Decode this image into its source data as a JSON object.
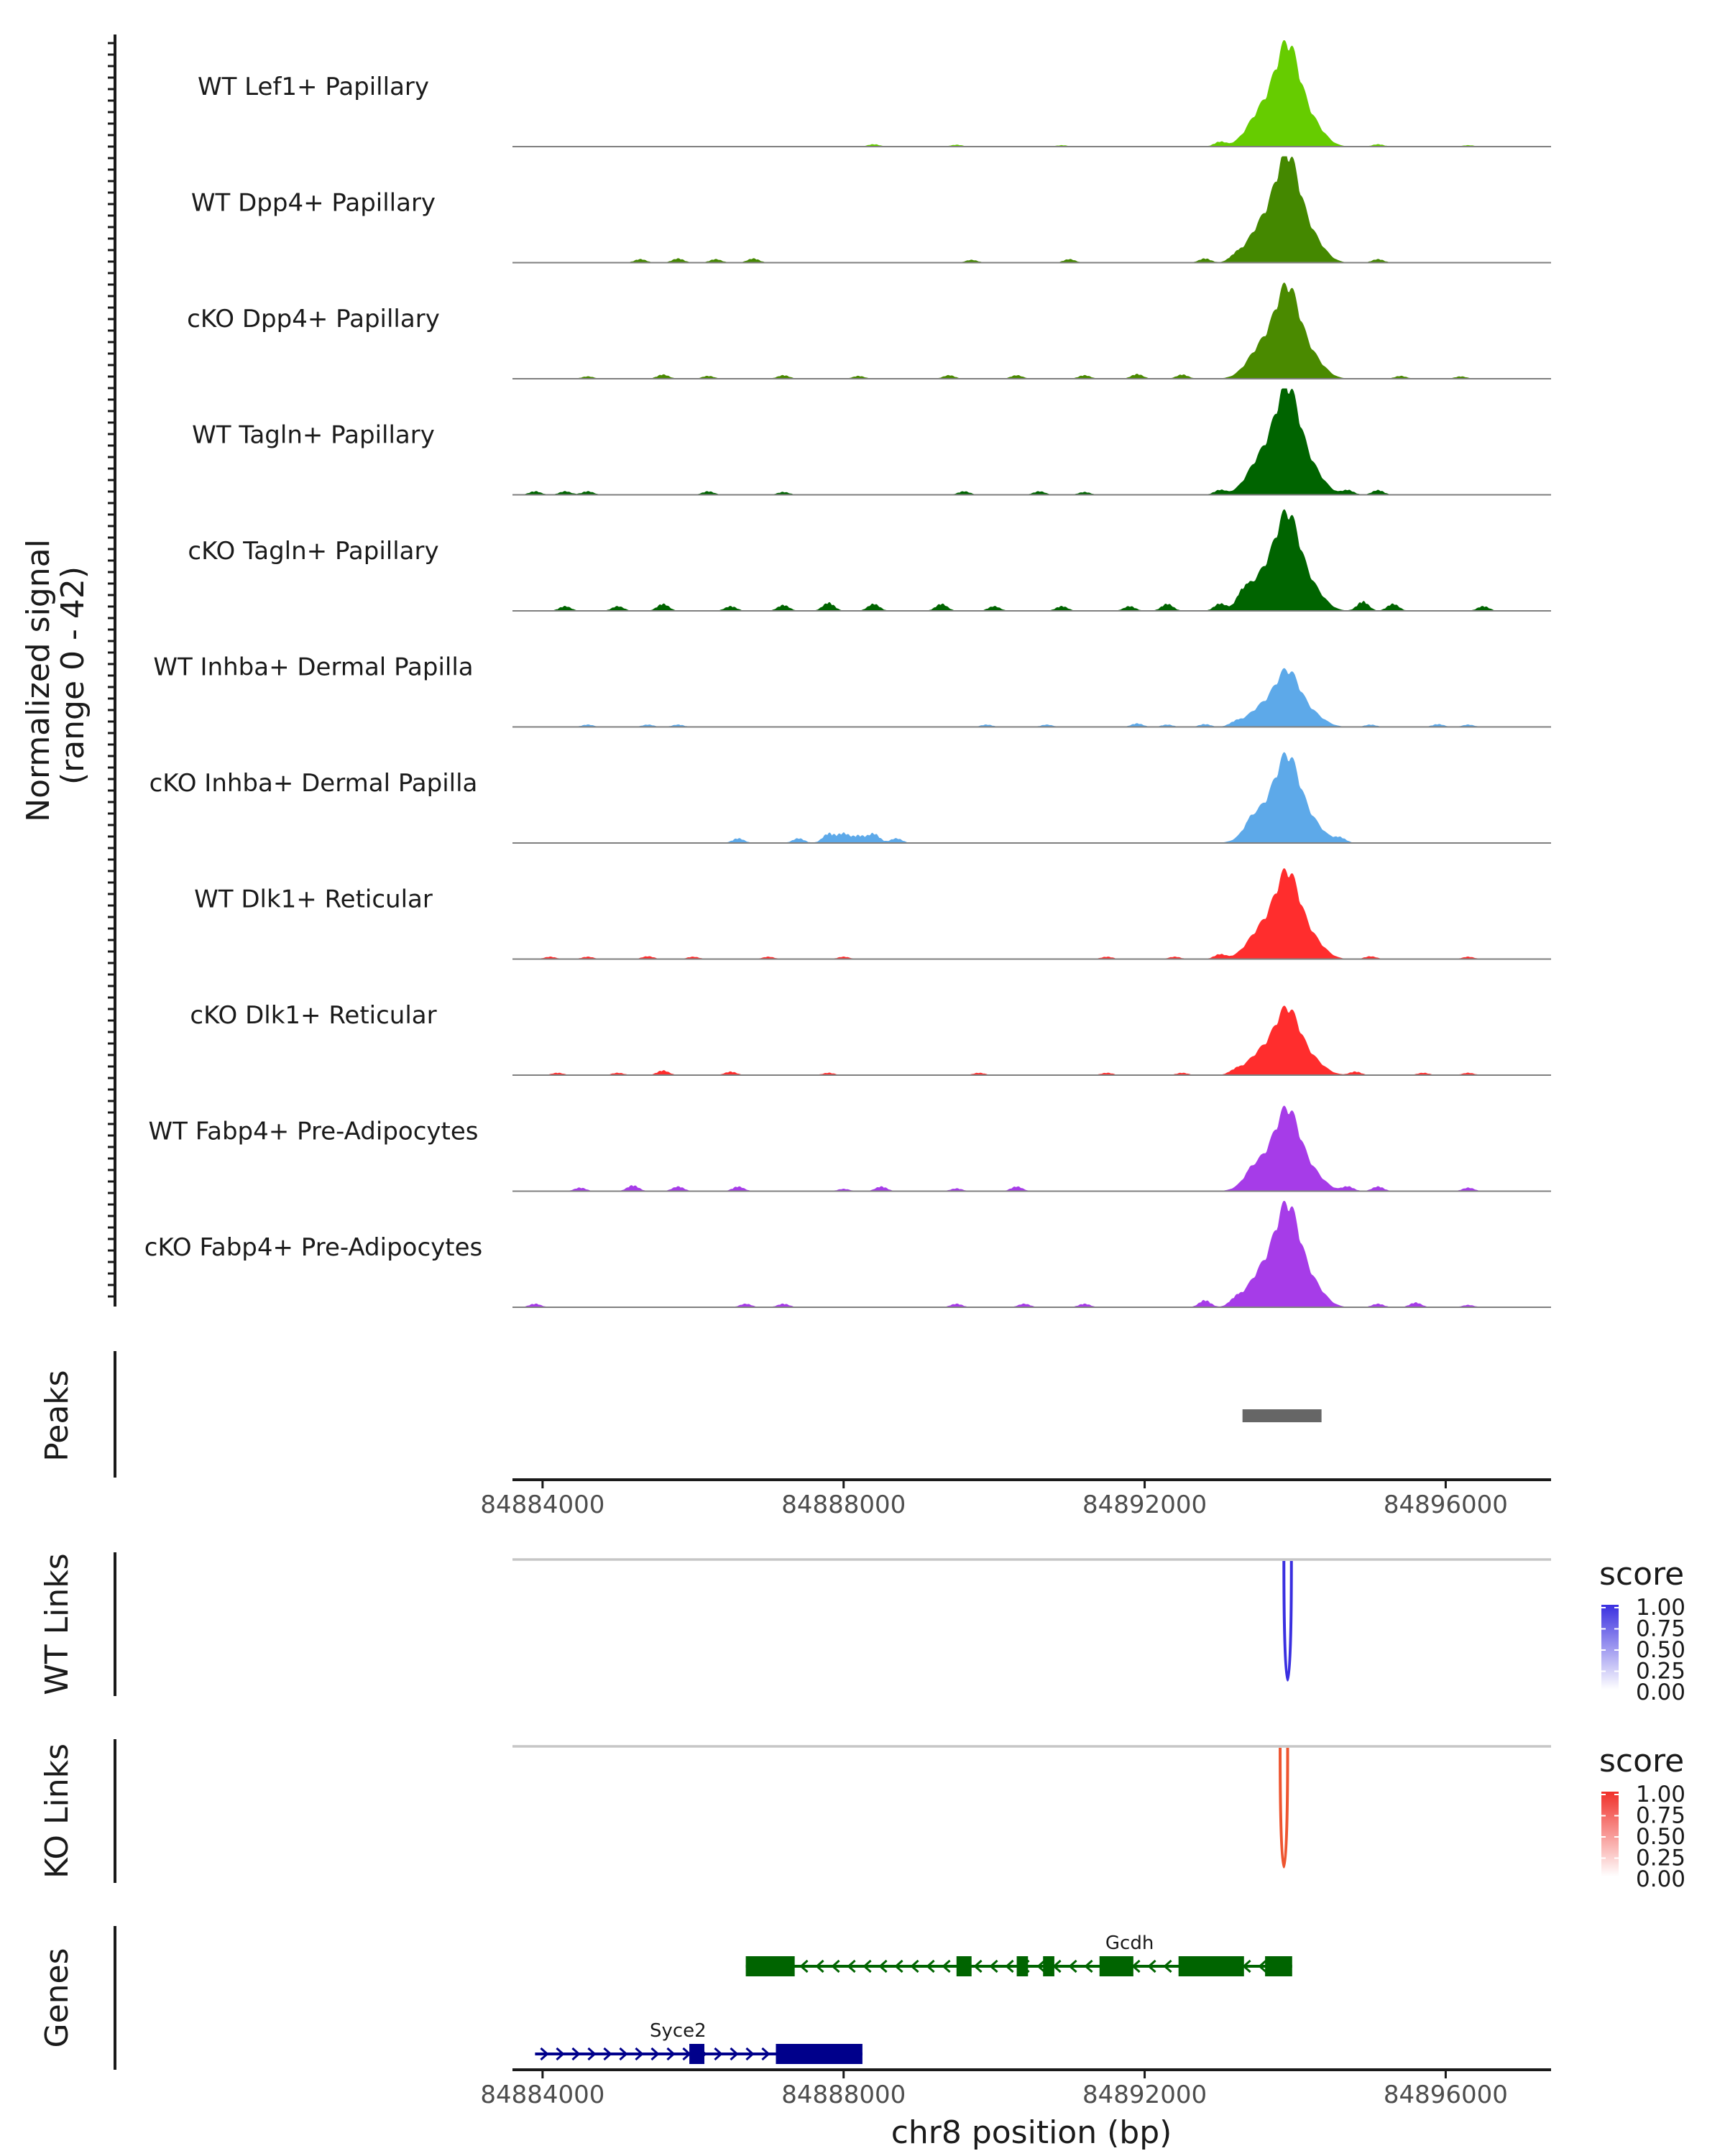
{
  "chart_data": {
    "type": "genome-browser-coverage",
    "region": "chr8:84883600-84897400",
    "xlim": [
      84883600,
      84897400
    ],
    "xlabel": "chr8 position (bp)",
    "x_ticks": [
      84884000,
      84888000,
      84892000,
      84896000
    ],
    "x_tick_labels": [
      "84884000",
      "84888000",
      "84892000",
      "84896000"
    ],
    "coverage": {
      "ylabel_line1": "Normalized signal",
      "ylabel_line2": "(range 0 - 42)",
      "yrange": [
        0,
        42
      ],
      "tracks": [
        {
          "name": "WT Lef1+ Papillary",
          "color": "#66CC00",
          "peak_height": 40,
          "blips": [
            [
              84888400,
              1.0
            ],
            [
              84889500,
              0.8
            ],
            [
              84890900,
              0.6
            ],
            [
              84893000,
              2.0
            ],
            [
              84895100,
              1.0
            ],
            [
              84896300,
              0.6
            ]
          ]
        },
        {
          "name": "WT Dpp4+ Papillary",
          "color": "#448800",
          "peak_height": 42,
          "blips": [
            [
              84885300,
              1.5
            ],
            [
              84885800,
              1.8
            ],
            [
              84886300,
              1.5
            ],
            [
              84886800,
              1.8
            ],
            [
              84889700,
              1.2
            ],
            [
              84891000,
              1.5
            ],
            [
              84892800,
              1.8
            ],
            [
              84893200,
              2.0
            ],
            [
              84895100,
              1.5
            ]
          ]
        },
        {
          "name": "cKO Dpp4+ Papillary",
          "color": "#4A8A00",
          "peak_height": 36,
          "blips": [
            [
              84884600,
              1.0
            ],
            [
              84885600,
              1.8
            ],
            [
              84886200,
              1.2
            ],
            [
              84887200,
              1.5
            ],
            [
              84888200,
              1.2
            ],
            [
              84889400,
              1.5
            ],
            [
              84890300,
              1.5
            ],
            [
              84891200,
              1.5
            ],
            [
              84891900,
              2.0
            ],
            [
              84892500,
              1.8
            ],
            [
              84895400,
              1.2
            ],
            [
              84896200,
              1.0
            ]
          ]
        },
        {
          "name": "WT Tagln+ Papillary",
          "color": "#006400",
          "peak_height": 42,
          "blips": [
            [
              84883900,
              1.5
            ],
            [
              84884300,
              1.5
            ],
            [
              84884600,
              1.5
            ],
            [
              84886200,
              1.5
            ],
            [
              84887200,
              1.2
            ],
            [
              84889600,
              1.5
            ],
            [
              84890600,
              1.5
            ],
            [
              84891200,
              1.2
            ],
            [
              84893000,
              2.0
            ],
            [
              84894700,
              2.0
            ],
            [
              84895100,
              2.0
            ]
          ]
        },
        {
          "name": "cKO Tagln+ Papillary",
          "color": "#006400",
          "peak_height": 38,
          "blips": [
            [
              84884300,
              2.0
            ],
            [
              84885000,
              2.0
            ],
            [
              84885600,
              3.0
            ],
            [
              84886500,
              2.0
            ],
            [
              84887200,
              2.5
            ],
            [
              84887800,
              3.5
            ],
            [
              84888400,
              3.0
            ],
            [
              84889300,
              3.0
            ],
            [
              84890000,
              2.0
            ],
            [
              84890900,
              2.0
            ],
            [
              84891800,
              2.0
            ],
            [
              84892300,
              3.0
            ],
            [
              84893000,
              3.0
            ],
            [
              84893300,
              4.5
            ],
            [
              84894900,
              4.0
            ],
            [
              84895300,
              3.0
            ],
            [
              84896500,
              2.0
            ]
          ]
        },
        {
          "name": "WT Inhba+ Dermal Papilla",
          "color": "#5DA9E9",
          "peak_height": 22,
          "blips": [
            [
              84884600,
              1.0
            ],
            [
              84885400,
              1.0
            ],
            [
              84885800,
              1.0
            ],
            [
              84889900,
              1.0
            ],
            [
              84890700,
              1.0
            ],
            [
              84891900,
              1.5
            ],
            [
              84892300,
              1.0
            ],
            [
              84892800,
              1.2
            ],
            [
              84893200,
              1.5
            ],
            [
              84895000,
              1.0
            ],
            [
              84895900,
              1.2
            ],
            [
              84896300,
              1.0
            ]
          ]
        },
        {
          "name": "cKO Inhba+ Dermal Papilla",
          "color": "#5DA9E9",
          "peak_height": 34,
          "blips": [
            [
              84886600,
              2.0
            ],
            [
              84887400,
              2.0
            ],
            [
              84887800,
              4.0
            ],
            [
              84888000,
              4.0
            ],
            [
              84888200,
              3.0
            ],
            [
              84888400,
              4.0
            ],
            [
              84888700,
              2.0
            ],
            [
              84893400,
              2.0
            ],
            [
              84894600,
              2.0
            ]
          ]
        },
        {
          "name": "WT Dlk1+ Reticular",
          "color": "#FF2D2D",
          "peak_height": 34,
          "blips": [
            [
              84884100,
              1.0
            ],
            [
              84884600,
              1.0
            ],
            [
              84885400,
              1.2
            ],
            [
              84886000,
              1.0
            ],
            [
              84887000,
              1.0
            ],
            [
              84888000,
              1.0
            ],
            [
              84891500,
              1.0
            ],
            [
              84892400,
              1.0
            ],
            [
              84893000,
              2.0
            ],
            [
              84895000,
              1.2
            ],
            [
              84896300,
              1.0
            ]
          ]
        },
        {
          "name": "cKO Dlk1+ Reticular",
          "color": "#FF2D2D",
          "peak_height": 26,
          "blips": [
            [
              84884200,
              1.0
            ],
            [
              84885000,
              1.0
            ],
            [
              84885600,
              2.0
            ],
            [
              84886500,
              1.5
            ],
            [
              84887800,
              1.0
            ],
            [
              84889800,
              1.0
            ],
            [
              84891500,
              1.0
            ],
            [
              84892500,
              1.0
            ],
            [
              84893200,
              1.5
            ],
            [
              84894800,
              1.5
            ],
            [
              84895700,
              1.0
            ],
            [
              84896300,
              1.0
            ]
          ]
        },
        {
          "name": "WT Fabp4+ Pre-Adipocytes",
          "color": "#A63CE8",
          "peak_height": 32,
          "blips": [
            [
              84884500,
              1.5
            ],
            [
              84885200,
              2.5
            ],
            [
              84885800,
              2.0
            ],
            [
              84886600,
              2.0
            ],
            [
              84888000,
              1.0
            ],
            [
              84888500,
              2.0
            ],
            [
              84889500,
              1.2
            ],
            [
              84890300,
              2.0
            ],
            [
              84893400,
              1.5
            ],
            [
              84894700,
              2.0
            ],
            [
              84895100,
              2.0
            ],
            [
              84896300,
              1.5
            ]
          ]
        },
        {
          "name": "cKO Fabp4+ Pre-Adipocytes",
          "color": "#A63CE8",
          "peak_height": 40,
          "blips": [
            [
              84883900,
              1.5
            ],
            [
              84886700,
              1.5
            ],
            [
              84887200,
              1.5
            ],
            [
              84889500,
              1.5
            ],
            [
              84890400,
              1.5
            ],
            [
              84891200,
              1.5
            ],
            [
              84892800,
              3.0
            ],
            [
              84893200,
              2.5
            ],
            [
              84895100,
              1.5
            ],
            [
              84895600,
              2.0
            ],
            [
              84896300,
              1.0
            ]
          ]
        }
      ]
    },
    "peaks": {
      "label": "Peaks",
      "regions": [
        [
          84893300,
          84894350
        ]
      ],
      "color": "#666666"
    },
    "links": [
      {
        "label": "WT Links",
        "color": "#3A2FE0",
        "score": 1.0,
        "start": 84893850,
        "end": 84893950,
        "legend": {
          "title": "score",
          "ticks": [
            "1.00",
            "0.75",
            "0.50",
            "0.25",
            "0.00"
          ],
          "high_color": "#3A2FE0"
        }
      },
      {
        "label": "KO Links",
        "color": "#EE5530",
        "score": 1.0,
        "start": 84893800,
        "end": 84893900,
        "legend": {
          "title": "score",
          "ticks": [
            "1.00",
            "0.75",
            "0.50",
            "0.25",
            "0.00"
          ],
          "high_color": "#F0302A"
        }
      }
    ],
    "genes": {
      "label": "Genes",
      "items": [
        {
          "name": "Gcdh",
          "strand": "-",
          "color": "#006400",
          "start": 84886700,
          "end": 84893960,
          "exons": [
            [
              84886700,
              84887350
            ],
            [
              84889500,
              84889700
            ],
            [
              84890300,
              84890450
            ],
            [
              84890650,
              84890800
            ],
            [
              84891400,
              84891850
            ],
            [
              84892450,
              84893320
            ],
            [
              84893600,
              84893960
            ]
          ]
        },
        {
          "name": "Syce2",
          "strand": "+",
          "color": "#00008B",
          "start": 84883900,
          "end": 84888250,
          "exons": [
            [
              84885950,
              84886150
            ],
            [
              84887100,
              84888250
            ]
          ]
        }
      ]
    }
  }
}
